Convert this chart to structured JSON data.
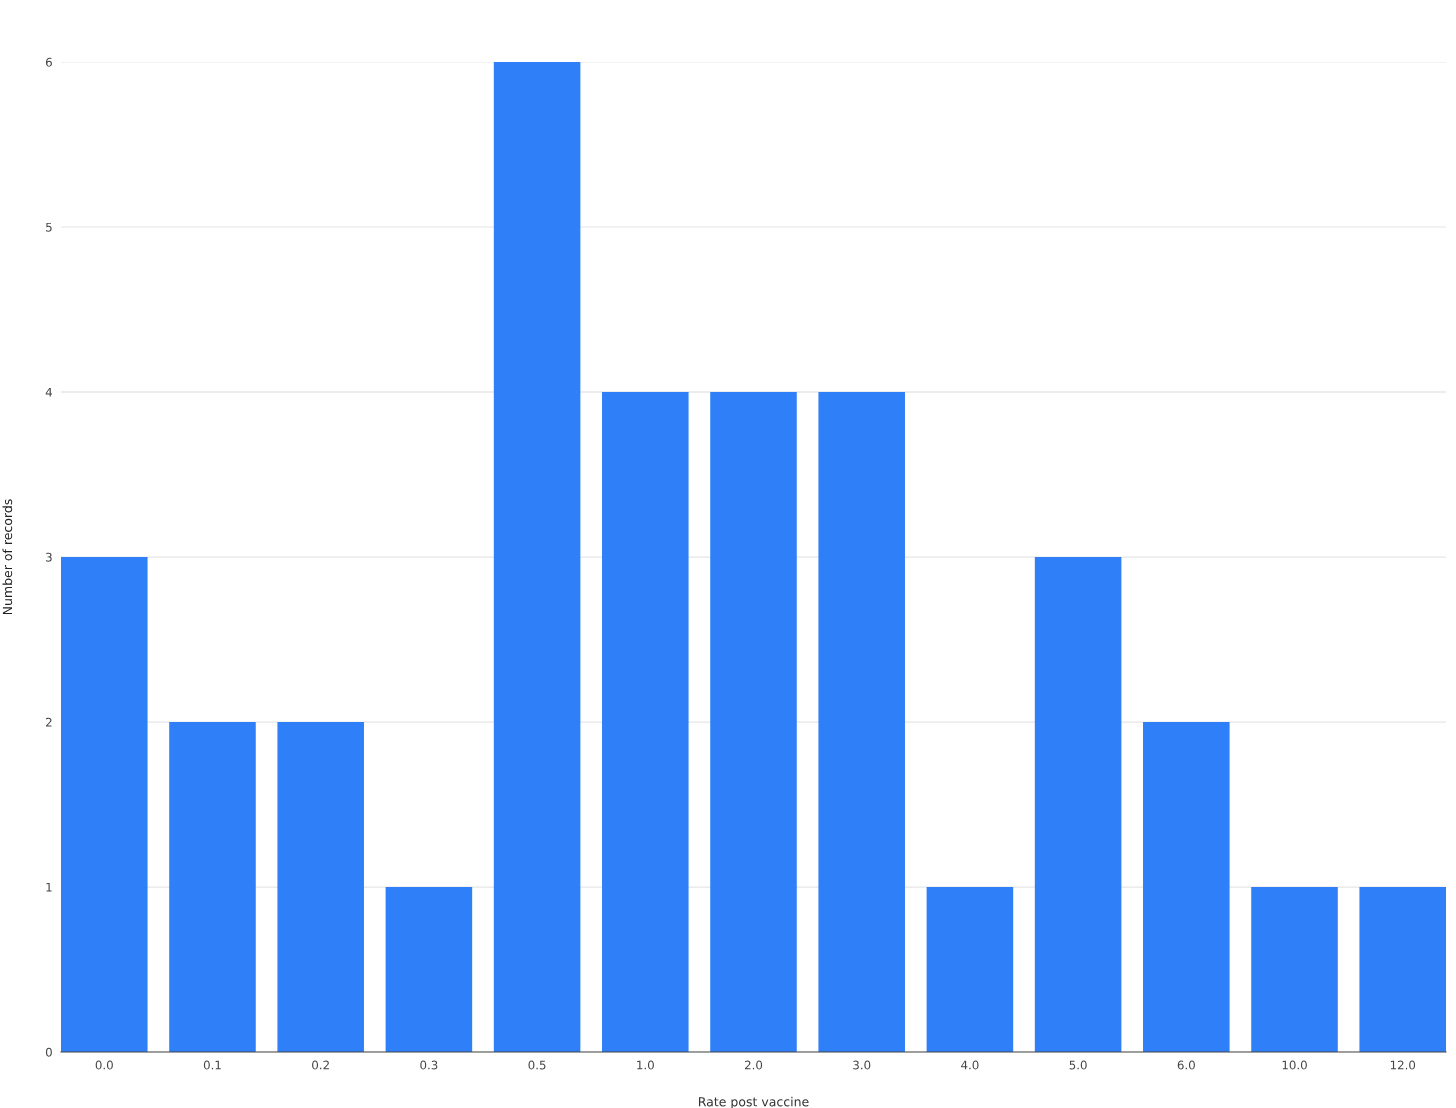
{
  "chart_data": {
    "type": "bar",
    "xlabel": "Rate post vaccine",
    "ylabel": "Number of records",
    "categories": [
      "0.0",
      "0.1",
      "0.2",
      "0.3",
      "0.5",
      "1.0",
      "2.0",
      "3.0",
      "4.0",
      "5.0",
      "6.0",
      "10.0",
      "12.0"
    ],
    "values": [
      3,
      2,
      2,
      1,
      6,
      4,
      4,
      4,
      1,
      3,
      2,
      1,
      1
    ],
    "color": "#2e7ff8",
    "ylim": [
      0,
      6
    ],
    "yticks": [
      0,
      1,
      2,
      3,
      4,
      5,
      6
    ],
    "grid": "y",
    "legend": false
  }
}
